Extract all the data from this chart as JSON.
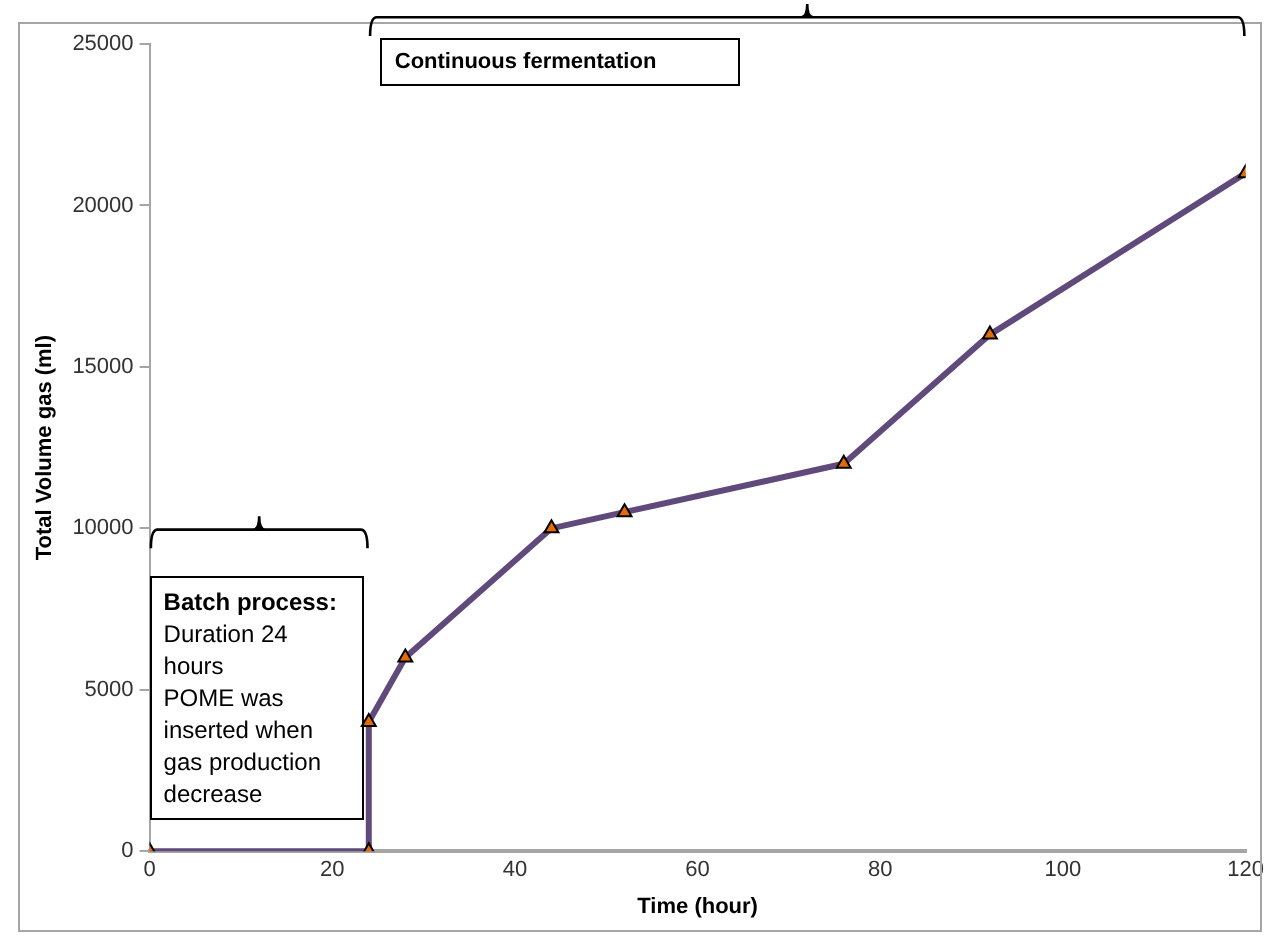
{
  "chart_data": {
    "type": "line",
    "xlabel": "Time (hour)",
    "ylabel": "Total Volume gas (ml)",
    "x": [
      0,
      24,
      24,
      28,
      44,
      52,
      76,
      92,
      120
    ],
    "series": [
      {
        "color": "#604a7b",
        "values": [
          0,
          0,
          4000,
          6000,
          10000,
          10500,
          12000,
          16000,
          21000
        ]
      }
    ],
    "marker": "triangle",
    "line_style": "solid",
    "xlim": [
      0,
      120
    ],
    "xticks": [
      0,
      20,
      40,
      60,
      80,
      100,
      120
    ],
    "ylim": [
      0,
      25000
    ],
    "yticks": [
      0,
      5000,
      10000,
      15000,
      20000,
      25000
    ],
    "grid": false,
    "legend": false,
    "annotations": [
      "Batch process:\nDuration 24 hours\nPOME was inserted when gas production decrease",
      "Continuous fermentation"
    ]
  }
}
